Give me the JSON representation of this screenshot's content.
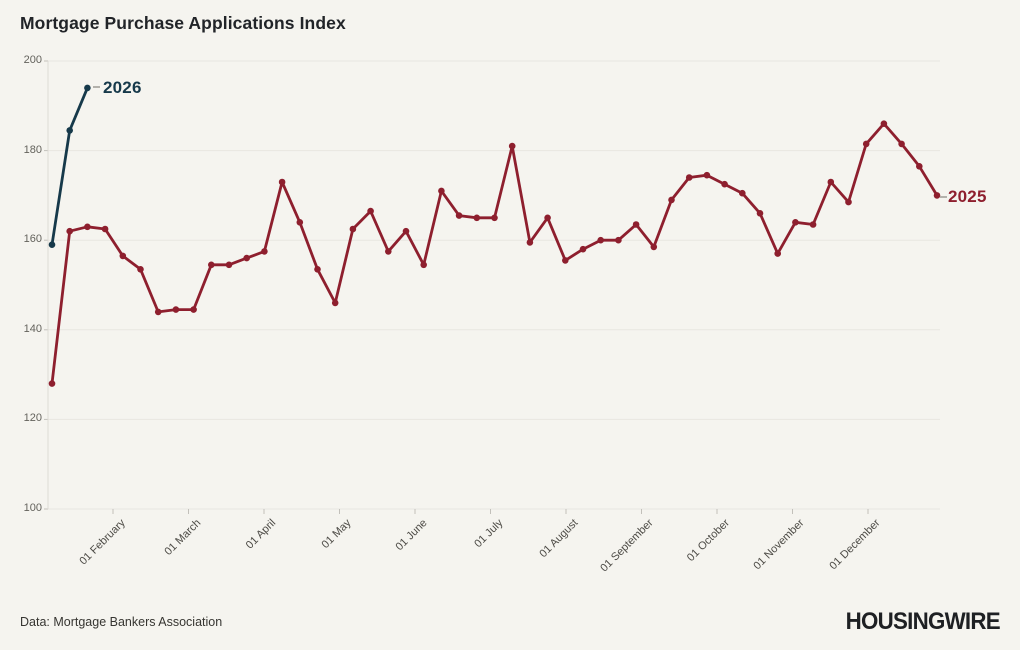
{
  "header": {
    "title": "Mortgage Purchase Applications Index"
  },
  "footer": {
    "source": "Data: Mortgage Bankers Association",
    "logo": "HOUSINGWIRE"
  },
  "colors": {
    "background": "#f5f4ef",
    "series_2025": "#8e1f2e",
    "series_2026": "#16394a",
    "gridline": "#e8e6e1",
    "axis_line": "#dddbd5",
    "tick": "#c2c0ba"
  },
  "chart_data": {
    "type": "line",
    "title": "Mortgage Purchase Applications Index",
    "xlabel": "",
    "ylabel": "",
    "y_axis": {
      "ticks": [
        100,
        120,
        140,
        160,
        180,
        200
      ],
      "range": [
        100,
        200
      ],
      "grid": true
    },
    "x_axis": {
      "tick_labels": [
        "01 February",
        "01 March",
        "01 April",
        "01 May",
        "01 June",
        "01 July",
        "01 August",
        "01 September",
        "01 October",
        "01 November",
        "01 December"
      ],
      "cadence": "weekly points spanning one year"
    },
    "legend_position": "inline-end-labels",
    "series": [
      {
        "name": "2025",
        "color": "#8e1f2e",
        "values": [
          128,
          162,
          163,
          162.5,
          156.5,
          153.5,
          144,
          144.5,
          144.5,
          154.5,
          154.5,
          156,
          157.5,
          173,
          164,
          153.5,
          146,
          162.5,
          166.5,
          157.5,
          162,
          154.5,
          171,
          165.5,
          165,
          165,
          181,
          159.5,
          165,
          155.5,
          158,
          160,
          160,
          163.5,
          158.5,
          169,
          174,
          174.5,
          172.5,
          170.5,
          166,
          157,
          164,
          163.5,
          173,
          168.5,
          181.5,
          186,
          181.5,
          176.5,
          170
        ]
      },
      {
        "name": "2026",
        "color": "#16394a",
        "values": [
          159,
          184.5,
          194
        ]
      }
    ],
    "source": "Data: Mortgage Bankers Association"
  }
}
